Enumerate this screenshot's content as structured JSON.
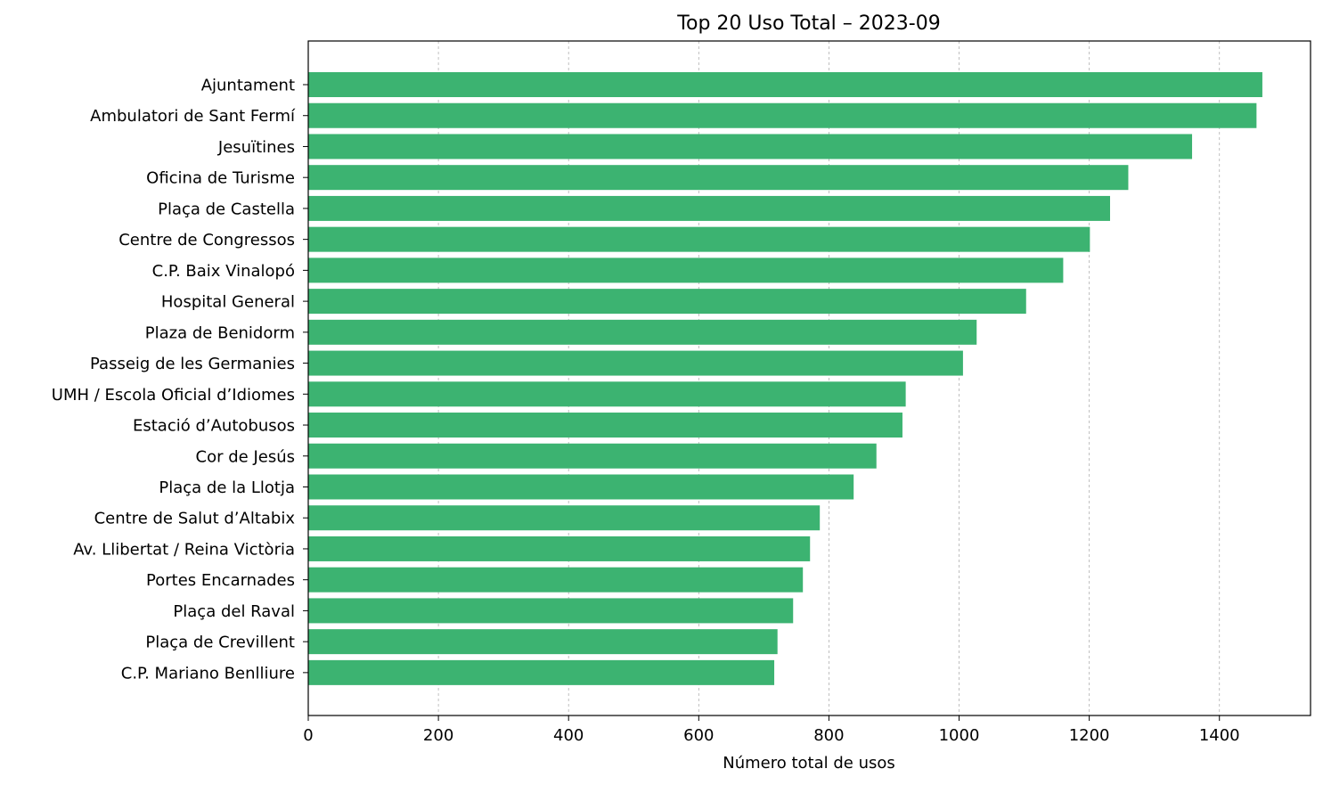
{
  "chart_data": {
    "type": "bar",
    "orientation": "horizontal",
    "title": "Top 20 Uso Total – 2023-09",
    "xlabel": "Número total de usos",
    "ylabel": "",
    "categories": [
      "Ajuntament",
      "Ambulatori de Sant Fermí",
      "Jesuïtines",
      "Oficina de Turisme",
      "Plaça de Castella",
      "Centre de Congressos",
      "C.P. Baix Vinalopó",
      "Hospital General",
      "Plaza de Benidorm",
      "Passeig de les Germanies",
      "UMH / Escola Oficial d’Idiomes",
      "Estació d’Autobusos",
      "Cor de Jesús",
      "Plaça de la Llotja",
      "Centre de Salut d’Altabix",
      "Av. Llibertat / Reina Victòria",
      "Portes Encarnades",
      "Plaça del Raval",
      "Plaça de Crevillent",
      "C.P. Mariano Benlliure"
    ],
    "values": [
      1466,
      1457,
      1358,
      1260,
      1232,
      1201,
      1160,
      1103,
      1027,
      1006,
      918,
      913,
      873,
      838,
      786,
      771,
      760,
      745,
      721,
      716
    ],
    "xlim": [
      0,
      1540
    ],
    "xticks": [
      0,
      200,
      400,
      600,
      800,
      1000,
      1200,
      1400
    ],
    "grid": "x",
    "bar_color": "#3cb371"
  }
}
